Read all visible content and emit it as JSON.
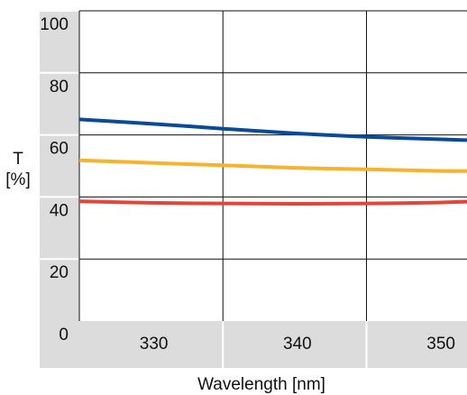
{
  "chart_data": {
    "type": "line",
    "title": "",
    "xlabel": "Wavelength [nm]",
    "ylabel_lines": [
      "T",
      "[%]"
    ],
    "xlim": [
      325,
      352
    ],
    "ylim": [
      0,
      100
    ],
    "x_ticks": [
      330,
      340,
      350
    ],
    "y_ticks": [
      0,
      20,
      40,
      60,
      80,
      100
    ],
    "grid": true,
    "legend": "none",
    "series": [
      {
        "color": "#0a4a9b",
        "x": [
          325,
          330,
          335,
          340,
          345,
          350,
          352
        ],
        "y": [
          65,
          63.6,
          62,
          60.5,
          59.4,
          58.6,
          58.3
        ]
      },
      {
        "color": "#f7b32b",
        "x": [
          325,
          330,
          335,
          340,
          345,
          350,
          352
        ],
        "y": [
          51.8,
          51,
          50.2,
          49.4,
          48.9,
          48.4,
          48.3
        ]
      },
      {
        "color": "#e2463a",
        "x": [
          325,
          330,
          335,
          340,
          345,
          350,
          352
        ],
        "y": [
          38.6,
          38.1,
          37.9,
          37.8,
          37.9,
          38.2,
          38.5
        ]
      }
    ]
  },
  "colors": {
    "axis_band": "#dcdcdc",
    "grid": "#111111"
  }
}
